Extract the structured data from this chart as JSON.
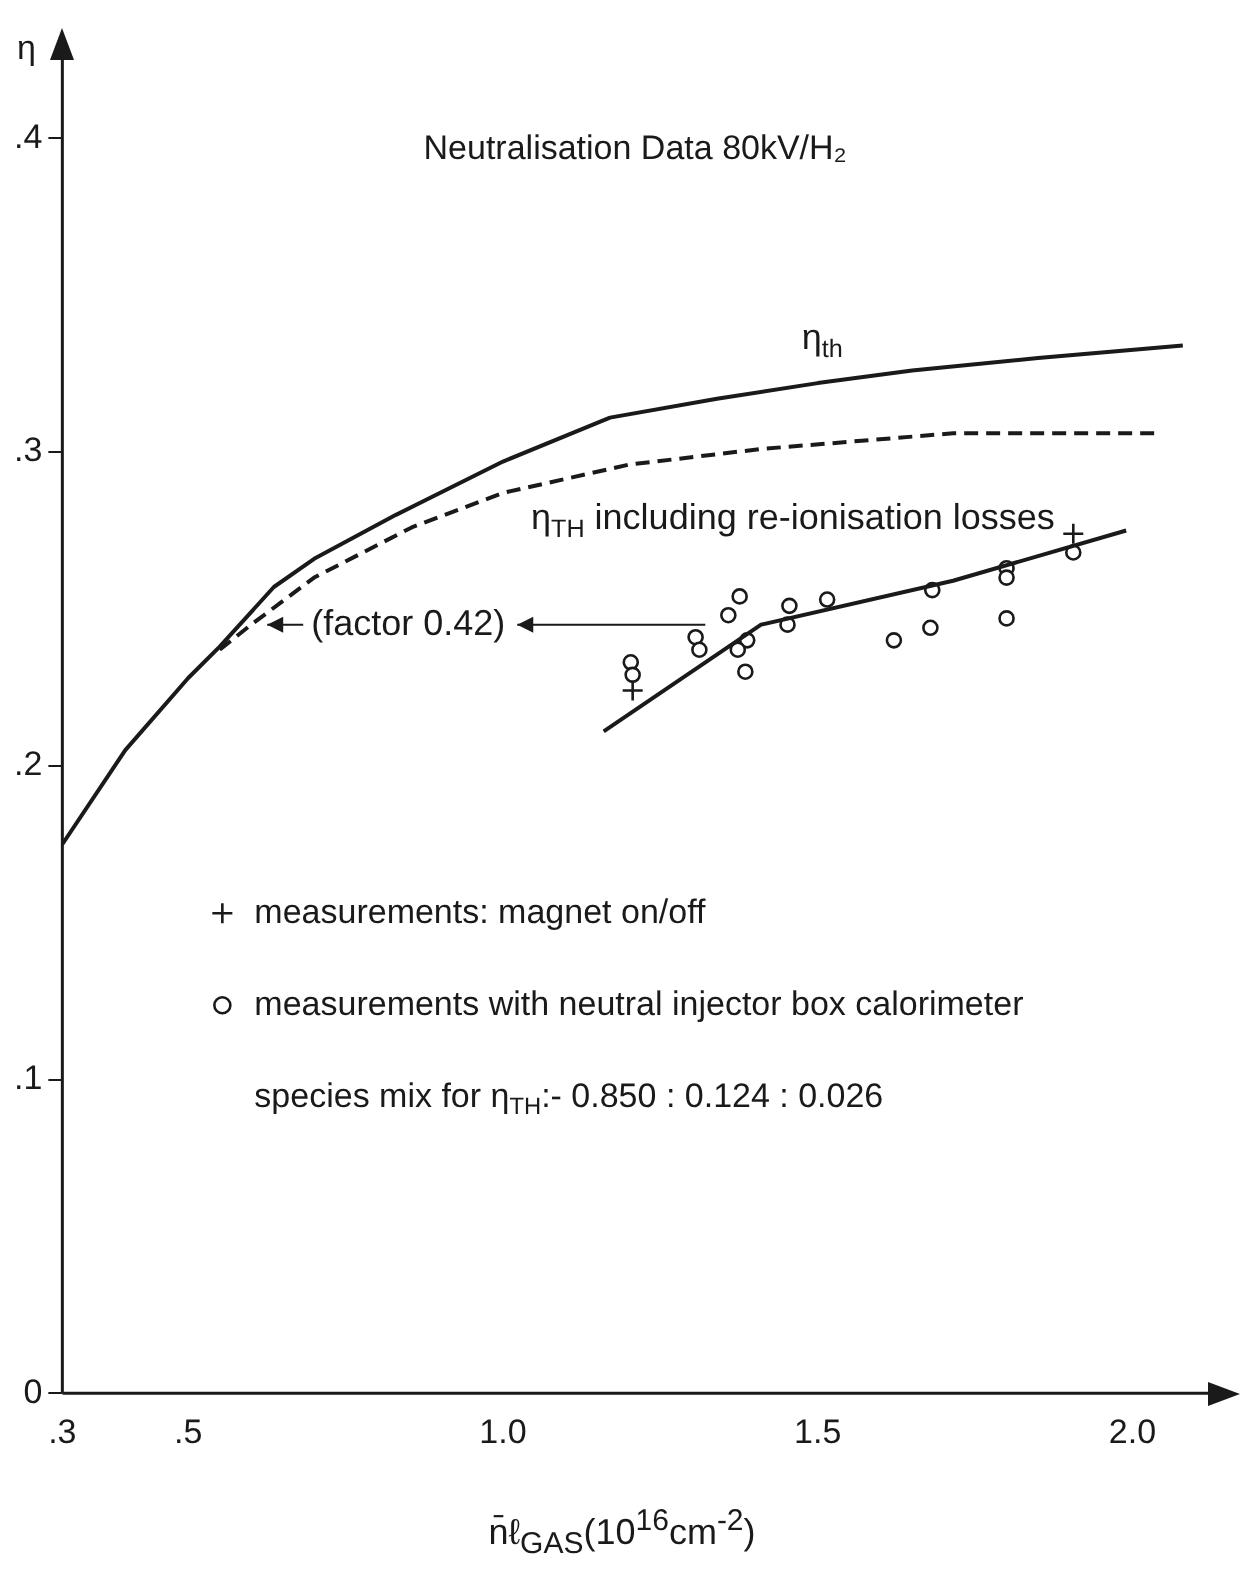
{
  "chart_data": {
    "type": "line",
    "title": "Neutralisation Data 80kV/H₂",
    "xlabel": "n̄ℓ$_{GAS}$(10$^{16}$cm$^{-2}$)",
    "ylabel": "η",
    "xlim": [
      0.3,
      2.12
    ],
    "ylim": [
      0,
      0.425
    ],
    "xticks": [
      {
        "value": 0.3,
        "label": ".3"
      },
      {
        "value": 0.5,
        "label": ".5"
      },
      {
        "value": 1.0,
        "label": "1.0"
      },
      {
        "value": 1.5,
        "label": "1.5"
      },
      {
        "value": 2.0,
        "label": "2.0"
      }
    ],
    "yticks": [
      0,
      {
        "value": 0.1,
        "label": ".1"
      },
      {
        "value": 0.2,
        "label": ".2"
      },
      {
        "value": 0.3,
        "label": ".3"
      },
      {
        "value": 0.4,
        "label": ".4"
      }
    ],
    "grid": false,
    "legend": "left",
    "series": [
      {
        "name": "η$_{th}$",
        "color": "#1a1a1a",
        "line_style": "solid",
        "marker": "none",
        "x": [
          0.3,
          0.4,
          0.5,
          0.55,
          0.636,
          0.7,
          0.83,
          1.0,
          1.17,
          1.34,
          1.5,
          1.65,
          1.85,
          2.08
        ],
        "values": [
          0.175,
          0.205,
          0.228,
          0.238,
          0.257,
          0.266,
          0.28,
          0.297,
          0.311,
          0.317,
          0.322,
          0.326,
          0.33,
          0.334
        ]
      },
      {
        "name": "η$_{TH}$ including re-ionisation losses",
        "color": "#1a1a1a",
        "line_style": "dashed",
        "marker": "none",
        "x": [
          0.55,
          0.6,
          0.7,
          0.855,
          1.0,
          1.2,
          1.41,
          1.715,
          2.04
        ],
        "values": [
          0.237,
          0.245,
          0.26,
          0.276,
          0.287,
          0.296,
          0.301,
          0.306,
          0.306
        ]
      },
      {
        "color": "#1a1a1a",
        "line_style": "solid",
        "marker": "none",
        "x": [
          1.16,
          1.41,
          1.715,
          1.99
        ],
        "values": [
          0.211,
          0.245,
          0.259,
          0.275
        ]
      },
      {
        "name": "measurements: magnet on/off",
        "type": "scatter",
        "color": "#1a1a1a",
        "marker": "cross",
        "x": [
          1.206,
          1.906
        ],
        "values": [
          0.224,
          0.274
        ]
      },
      {
        "name": "measurements with neutral injector box calorimeter",
        "type": "scatter",
        "color": "#1a1a1a",
        "marker": "circle",
        "x": [
          1.203,
          1.206,
          1.306,
          1.312,
          1.376,
          1.358,
          1.388,
          1.373,
          1.385,
          1.455,
          1.452,
          1.515,
          1.621,
          1.679,
          1.682,
          1.8,
          1.8,
          1.8,
          1.906
        ],
        "values": [
          0.233,
          0.229,
          0.241,
          0.237,
          0.254,
          0.248,
          0.24,
          0.237,
          0.23,
          0.251,
          0.245,
          0.253,
          0.24,
          0.244,
          0.256,
          0.263,
          0.26,
          0.247,
          0.268
        ]
      }
    ],
    "annotations": [
      {
        "text": "(factor 0.42)",
        "x": 0.6,
        "y": 0.245
      },
      "species mix for η$_{TH}$:- 0.850 : 0.124 : 0.026"
    ]
  }
}
